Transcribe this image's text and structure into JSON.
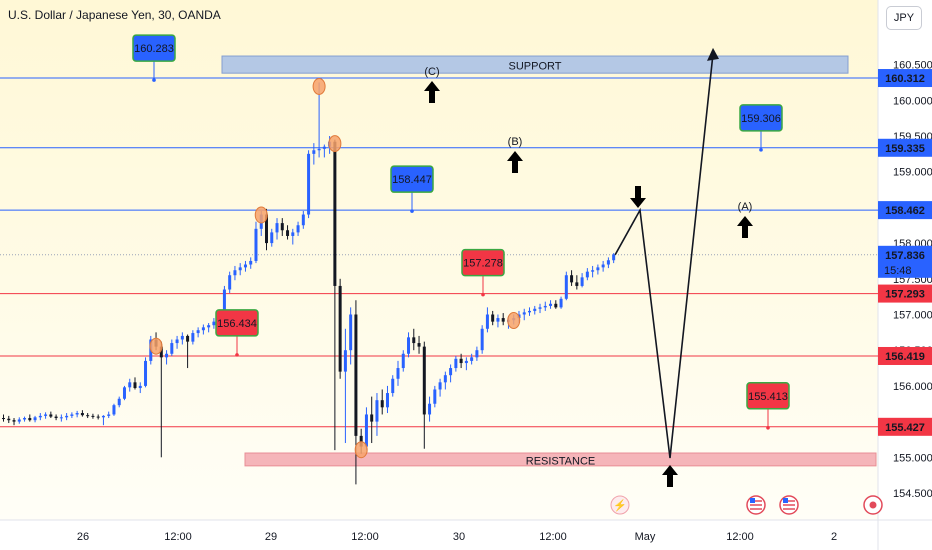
{
  "header": {
    "symbol_title": "U.S. Dollar / Japanese Yen, 30, OANDA",
    "currency_button": "JPY"
  },
  "chart_data": {
    "type": "candlestick",
    "ylim": [
      154.33,
      161.1
    ],
    "y_ticks": [
      "154.500",
      "155.000",
      "155.500",
      "156.000",
      "156.500",
      "157.000",
      "157.500",
      "158.000",
      "158.500",
      "159.000",
      "159.500",
      "160.000",
      "160.500"
    ],
    "x_ticks": [
      {
        "label": "26",
        "x": 83
      },
      {
        "label": "12:00",
        "x": 178
      },
      {
        "label": "29",
        "x": 271
      },
      {
        "label": "12:00",
        "x": 365
      },
      {
        "label": "30",
        "x": 459
      },
      {
        "label": "12:00",
        "x": 553
      },
      {
        "label": "May",
        "x": 645
      },
      {
        "label": "12:00",
        "x": 740
      },
      {
        "label": "2",
        "x": 834
      }
    ],
    "horizontal_levels": [
      {
        "value": 160.312,
        "color": "#2962ff",
        "label": "160.312"
      },
      {
        "value": 159.335,
        "color": "#2962ff",
        "label": "159.335"
      },
      {
        "value": 158.462,
        "color": "#2962ff",
        "label": "158.462"
      },
      {
        "value": 157.293,
        "color": "#f23645",
        "label": "157.293"
      },
      {
        "value": 156.419,
        "color": "#f23645",
        "label": "156.419"
      },
      {
        "value": 155.427,
        "color": "#f23645",
        "label": "155.427"
      }
    ],
    "last_price": {
      "value": 157.836,
      "label": "157.836",
      "countdown": "15:48",
      "color": "#2962ff"
    },
    "zones": [
      {
        "label": "SUPPORT",
        "from": 160.38,
        "to": 160.62,
        "fill": "#a8c0e8",
        "stroke": "#6f8fd0"
      },
      {
        "label": "RESISTANCE",
        "from": 154.88,
        "to": 155.06,
        "fill": "#f4a9b0",
        "stroke": "#e57b86"
      }
    ],
    "callouts": [
      {
        "label": "160.283",
        "value": 160.283,
        "color": "#2962ff"
      },
      {
        "label": "158.447",
        "value": 158.447,
        "color": "#2962ff"
      },
      {
        "label": "159.306",
        "value": 159.306,
        "color": "#2962ff"
      },
      {
        "label": "157.278",
        "value": 157.278,
        "color": "#f23645"
      },
      {
        "label": "156.434",
        "value": 156.434,
        "color": "#f23645"
      },
      {
        "label": "155.413",
        "value": 155.413,
        "color": "#f23645"
      }
    ],
    "wave_labels": [
      "(C)",
      "(B)",
      "(A)"
    ],
    "projection_path": [
      157.836,
      158.462,
      154.99,
      160.65
    ],
    "candles": [
      [
        155.55,
        155.6,
        155.5,
        155.54
      ],
      [
        155.54,
        155.58,
        155.48,
        155.52
      ],
      [
        155.52,
        155.55,
        155.45,
        155.5
      ],
      [
        155.5,
        155.56,
        155.47,
        155.53
      ],
      [
        155.53,
        155.57,
        155.5,
        155.55
      ],
      [
        155.55,
        155.6,
        155.5,
        155.52
      ],
      [
        155.52,
        155.58,
        155.49,
        155.56
      ],
      [
        155.56,
        155.62,
        155.52,
        155.58
      ],
      [
        155.58,
        155.63,
        155.54,
        155.6
      ],
      [
        155.6,
        155.64,
        155.55,
        155.57
      ],
      [
        155.57,
        155.6,
        155.52,
        155.55
      ],
      [
        155.55,
        155.6,
        155.5,
        155.56
      ],
      [
        155.56,
        155.62,
        155.52,
        155.58
      ],
      [
        155.58,
        155.63,
        155.55,
        155.6
      ],
      [
        155.6,
        155.65,
        155.56,
        155.62
      ],
      [
        155.62,
        155.66,
        155.57,
        155.59
      ],
      [
        155.59,
        155.62,
        155.55,
        155.58
      ],
      [
        155.58,
        155.61,
        155.54,
        155.57
      ],
      [
        155.57,
        155.6,
        155.53,
        155.56
      ],
      [
        155.56,
        155.59,
        155.45,
        155.58
      ],
      [
        155.58,
        155.64,
        155.55,
        155.6
      ],
      [
        155.6,
        155.75,
        155.58,
        155.73
      ],
      [
        155.73,
        155.85,
        155.7,
        155.82
      ],
      [
        155.82,
        156.0,
        155.8,
        155.98
      ],
      [
        155.98,
        156.1,
        155.92,
        156.05
      ],
      [
        156.05,
        156.12,
        155.95,
        155.97
      ],
      [
        155.97,
        156.05,
        155.9,
        156.0
      ],
      [
        156.0,
        156.4,
        155.98,
        156.35
      ],
      [
        156.35,
        156.7,
        156.3,
        156.65
      ],
      [
        156.65,
        156.75,
        156.5,
        156.55
      ],
      [
        156.55,
        156.62,
        155.0,
        156.4
      ],
      [
        156.4,
        156.5,
        156.3,
        156.45
      ],
      [
        156.45,
        156.65,
        156.42,
        156.6
      ],
      [
        156.6,
        156.7,
        156.52,
        156.65
      ],
      [
        156.65,
        156.75,
        156.58,
        156.7
      ],
      [
        156.7,
        156.72,
        156.25,
        156.62
      ],
      [
        156.62,
        156.78,
        156.58,
        156.74
      ],
      [
        156.74,
        156.82,
        156.68,
        156.78
      ],
      [
        156.78,
        156.86,
        156.72,
        156.82
      ],
      [
        156.82,
        156.88,
        156.75,
        156.85
      ],
      [
        156.85,
        156.95,
        156.8,
        156.9
      ],
      [
        156.9,
        157.05,
        156.88,
        157.02
      ],
      [
        157.02,
        157.4,
        157.0,
        157.35
      ],
      [
        157.35,
        157.6,
        157.3,
        157.55
      ],
      [
        157.55,
        157.68,
        157.48,
        157.62
      ],
      [
        157.62,
        157.72,
        157.55,
        157.66
      ],
      [
        157.66,
        157.75,
        157.6,
        157.7
      ],
      [
        157.7,
        157.8,
        157.64,
        157.75
      ],
      [
        157.75,
        158.3,
        157.72,
        158.2
      ],
      [
        158.2,
        158.45,
        158.1,
        158.4
      ],
      [
        158.4,
        158.48,
        157.9,
        158.0
      ],
      [
        158.0,
        158.2,
        157.95,
        158.15
      ],
      [
        158.15,
        158.35,
        158.05,
        158.28
      ],
      [
        158.28,
        158.35,
        158.1,
        158.18
      ],
      [
        158.18,
        158.25,
        158.05,
        158.1
      ],
      [
        158.1,
        158.2,
        157.98,
        158.15
      ],
      [
        158.15,
        158.3,
        158.1,
        158.25
      ],
      [
        158.25,
        158.45,
        158.2,
        158.4
      ],
      [
        158.4,
        159.3,
        158.35,
        159.25
      ],
      [
        159.25,
        159.4,
        159.1,
        159.3
      ],
      [
        159.3,
        160.25,
        159.2,
        159.32
      ],
      [
        159.32,
        159.38,
        159.2,
        159.35
      ],
      [
        159.35,
        159.5,
        159.25,
        159.42
      ],
      [
        159.42,
        159.45,
        155.1,
        157.4
      ],
      [
        157.4,
        157.5,
        156.1,
        156.2
      ],
      [
        156.2,
        156.8,
        155.2,
        156.5
      ],
      [
        156.5,
        157.1,
        156.3,
        157.0
      ],
      [
        157.0,
        157.2,
        154.62,
        155.3
      ],
      [
        155.3,
        155.4,
        155.05,
        155.15
      ],
      [
        155.15,
        155.7,
        155.1,
        155.6
      ],
      [
        155.6,
        155.85,
        155.2,
        155.5
      ],
      [
        155.5,
        155.9,
        155.3,
        155.8
      ],
      [
        155.8,
        155.95,
        155.6,
        155.7
      ],
      [
        155.7,
        156.0,
        155.62,
        155.9
      ],
      [
        155.9,
        156.15,
        155.85,
        156.1
      ],
      [
        156.1,
        156.35,
        156.0,
        156.25
      ],
      [
        156.25,
        156.5,
        156.2,
        156.45
      ],
      [
        156.45,
        156.75,
        156.4,
        156.68
      ],
      [
        156.68,
        156.8,
        156.5,
        156.6
      ],
      [
        156.6,
        156.7,
        156.45,
        156.55
      ],
      [
        156.55,
        156.62,
        155.12,
        155.6
      ],
      [
        155.6,
        155.85,
        155.5,
        155.75
      ],
      [
        155.75,
        156.0,
        155.7,
        155.95
      ],
      [
        155.95,
        156.1,
        155.85,
        156.05
      ],
      [
        156.05,
        156.2,
        155.95,
        156.15
      ],
      [
        156.15,
        156.3,
        156.05,
        156.25
      ],
      [
        156.25,
        156.42,
        156.2,
        156.38
      ],
      [
        156.38,
        156.45,
        156.25,
        156.32
      ],
      [
        156.32,
        156.4,
        156.22,
        156.35
      ],
      [
        156.35,
        156.45,
        156.3,
        156.4
      ],
      [
        156.4,
        156.55,
        156.35,
        156.5
      ],
      [
        156.5,
        156.85,
        156.45,
        156.8
      ],
      [
        156.8,
        157.1,
        156.75,
        157.0
      ],
      [
        157.0,
        157.05,
        156.85,
        156.9
      ],
      [
        156.9,
        157.0,
        156.82,
        156.95
      ],
      [
        156.95,
        157.02,
        156.85,
        156.9
      ],
      [
        156.9,
        156.98,
        156.8,
        156.92
      ],
      [
        156.92,
        157.0,
        156.86,
        156.95
      ],
      [
        156.95,
        157.05,
        156.88,
        157.0
      ],
      [
        157.0,
        157.08,
        156.92,
        157.03
      ],
      [
        157.03,
        157.1,
        156.98,
        157.05
      ],
      [
        157.05,
        157.12,
        157.0,
        157.08
      ],
      [
        157.08,
        157.15,
        157.02,
        157.1
      ],
      [
        157.1,
        157.18,
        157.05,
        157.12
      ],
      [
        157.12,
        157.2,
        157.08,
        157.15
      ],
      [
        157.15,
        157.2,
        157.08,
        157.1
      ],
      [
        157.1,
        157.25,
        157.08,
        157.22
      ],
      [
        157.22,
        157.6,
        157.2,
        157.55
      ],
      [
        157.55,
        157.62,
        157.4,
        157.45
      ],
      [
        157.45,
        157.55,
        157.35,
        157.4
      ],
      [
        157.4,
        157.58,
        157.38,
        157.52
      ],
      [
        157.52,
        157.65,
        157.48,
        157.6
      ],
      [
        157.6,
        157.68,
        157.52,
        157.62
      ],
      [
        157.62,
        157.7,
        157.56,
        157.66
      ],
      [
        157.66,
        157.75,
        157.6,
        157.7
      ],
      [
        157.7,
        157.8,
        157.65,
        157.76
      ],
      [
        157.76,
        157.86,
        157.72,
        157.84
      ]
    ]
  }
}
